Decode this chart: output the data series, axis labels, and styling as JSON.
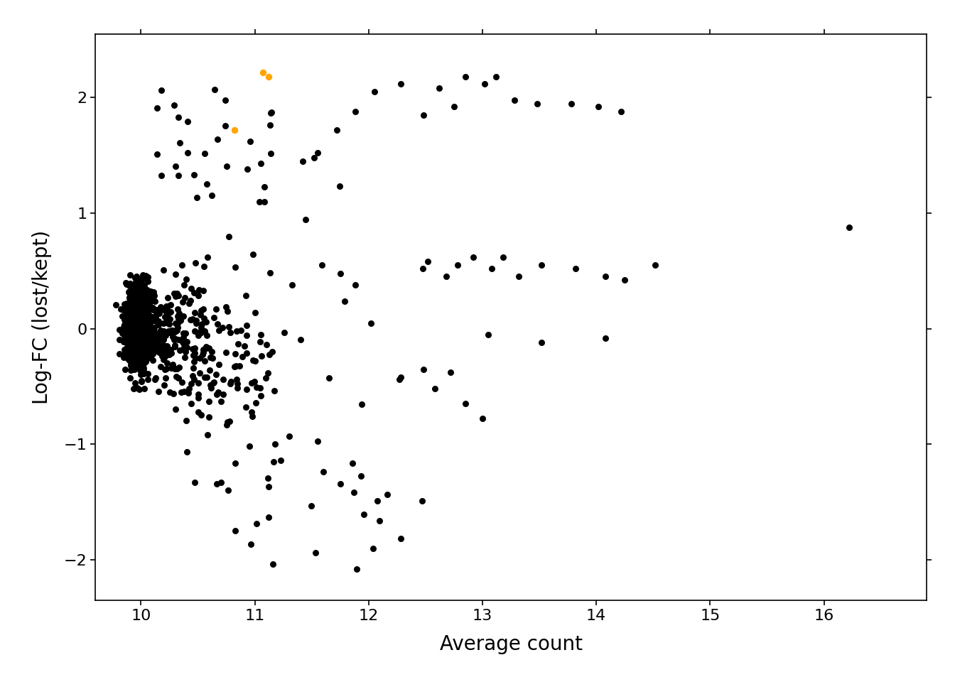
{
  "xlabel": "Average count",
  "ylabel": "Log-FC (lost/kept)",
  "xlim": [
    9.6,
    16.9
  ],
  "ylim": [
    -2.35,
    2.55
  ],
  "xticks": [
    10,
    11,
    12,
    13,
    14,
    15,
    16
  ],
  "yticks": [
    -2,
    -1,
    0,
    1,
    2
  ],
  "background_color": "#ffffff",
  "point_color_black": "#000000",
  "point_color_orange": "#FFA500",
  "point_size": 42,
  "random_seed": 42,
  "orange_points": [
    [
      10.82,
      1.72
    ],
    [
      11.07,
      2.22
    ],
    [
      11.12,
      2.18
    ]
  ],
  "sparse_points": [
    [
      11.55,
      1.52
    ],
    [
      11.72,
      1.72
    ],
    [
      11.88,
      1.88
    ],
    [
      12.05,
      2.05
    ],
    [
      12.28,
      2.12
    ],
    [
      12.48,
      1.85
    ],
    [
      12.62,
      2.08
    ],
    [
      12.75,
      1.92
    ],
    [
      12.85,
      2.18
    ],
    [
      13.02,
      2.12
    ],
    [
      13.12,
      2.18
    ],
    [
      13.28,
      1.98
    ],
    [
      13.48,
      1.95
    ],
    [
      13.78,
      1.95
    ],
    [
      14.02,
      1.92
    ],
    [
      14.22,
      1.88
    ],
    [
      12.52,
      0.58
    ],
    [
      12.68,
      0.45
    ],
    [
      12.78,
      0.55
    ],
    [
      12.92,
      0.62
    ],
    [
      13.08,
      0.52
    ],
    [
      13.18,
      0.62
    ],
    [
      13.32,
      0.45
    ],
    [
      13.52,
      0.55
    ],
    [
      13.82,
      0.52
    ],
    [
      14.08,
      0.45
    ],
    [
      14.25,
      0.42
    ],
    [
      14.52,
      0.55
    ],
    [
      13.05,
      -0.05
    ],
    [
      13.52,
      -0.12
    ],
    [
      14.08,
      -0.08
    ],
    [
      16.22,
      0.88
    ],
    [
      11.42,
      1.45
    ],
    [
      11.52,
      1.48
    ],
    [
      11.75,
      0.48
    ],
    [
      11.88,
      0.38
    ],
    [
      12.02,
      0.05
    ],
    [
      12.28,
      -0.42
    ],
    [
      12.48,
      -0.35
    ],
    [
      12.58,
      -0.52
    ],
    [
      12.72,
      -0.38
    ],
    [
      12.85,
      -0.65
    ],
    [
      13.0,
      -0.78
    ]
  ]
}
